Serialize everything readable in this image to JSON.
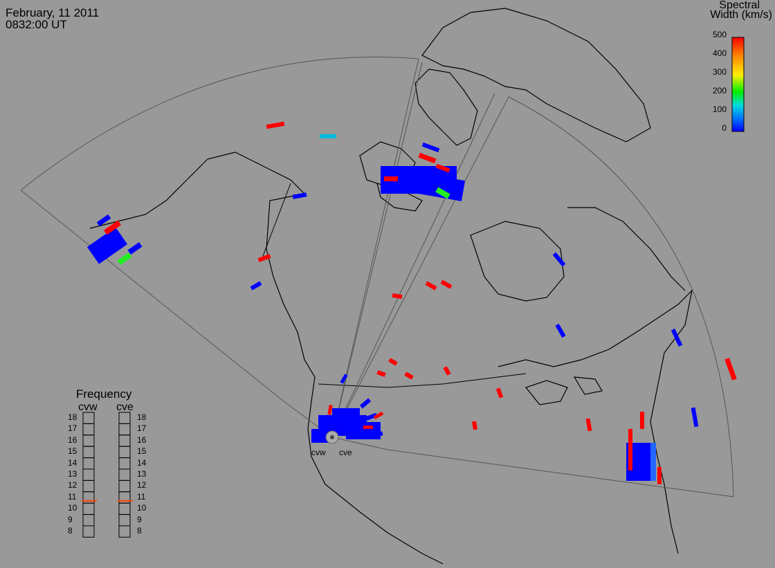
{
  "header": {
    "date": "February, 11 2011",
    "time": "0832:00 UT"
  },
  "legend": {
    "title_line1": "Spectral",
    "title_line2": "Width (km/s)",
    "ticks": [
      "500",
      "400",
      "300",
      "200",
      "100",
      "0"
    ],
    "scale_min": 0,
    "scale_max": 500,
    "colors": [
      "#ff0000",
      "#ff8800",
      "#ffee00",
      "#00ee00",
      "#00dddd",
      "#0066ff",
      "#0000ff"
    ]
  },
  "frequency": {
    "title": "Frequency",
    "radars": [
      {
        "name": "cvw",
        "value_mhz": 10.7
      },
      {
        "name": "cve",
        "value_mhz": 10.7
      }
    ],
    "ticks": [
      "18",
      "17",
      "16",
      "15",
      "14",
      "13",
      "12",
      "11",
      "10",
      "9",
      "8"
    ],
    "min": 8,
    "max": 18,
    "indicator_color": "#ff4400"
  },
  "sites": [
    {
      "name": "cvw"
    },
    {
      "name": "cve"
    }
  ]
}
